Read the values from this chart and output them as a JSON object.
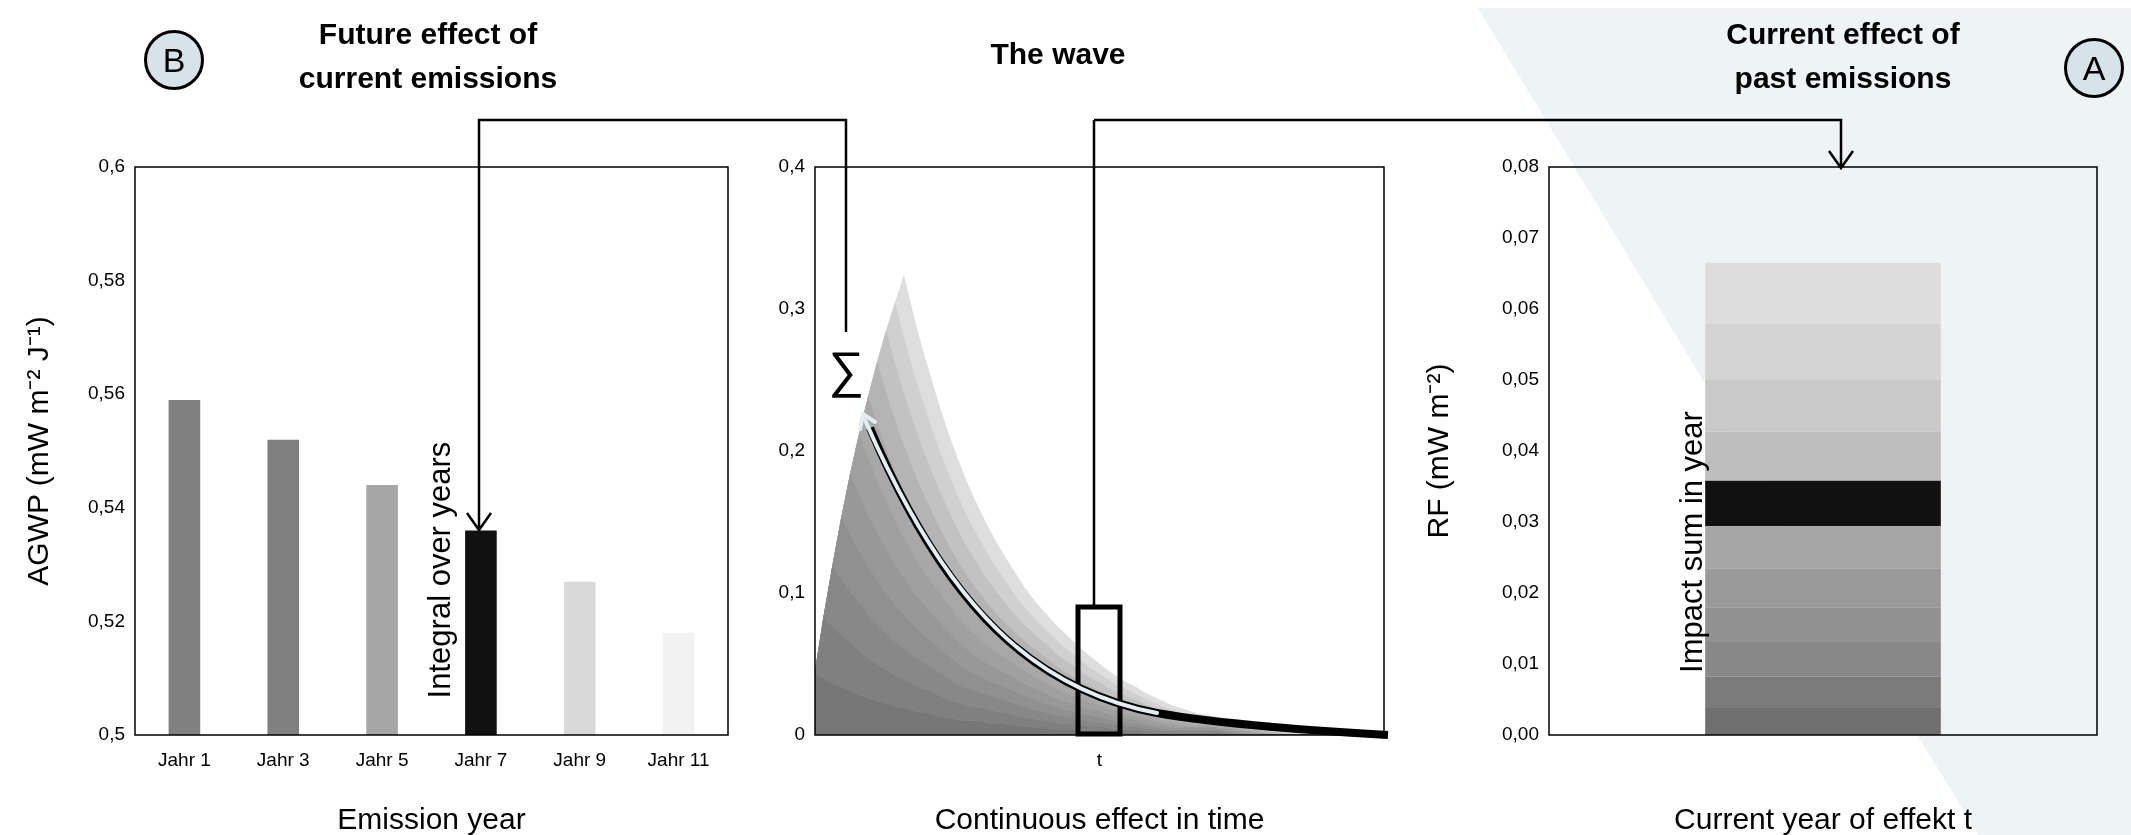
{
  "chart_data": [
    {
      "type": "bar",
      "title": "Future effect of current emissions",
      "xlabel": "Emission year",
      "ylabel": "AGWP (mW m⁻² J⁻¹)",
      "categories": [
        "Jahr 1",
        "Jahr 3",
        "Jahr 5",
        "Jahr 7",
        "Jahr 9",
        "Jahr 11"
      ],
      "values": [
        0.559,
        0.552,
        0.544,
        0.536,
        0.527,
        0.518
      ],
      "colors": [
        "#808080",
        "#808080",
        "#a6a6a6",
        "#111111",
        "#d9d9d9",
        "#f2f2f2"
      ],
      "ylim": [
        0.5,
        0.6
      ],
      "yticks": [
        {
          "value": 0.5,
          "label": "0,5"
        },
        {
          "value": 0.52,
          "label": "0,52"
        },
        {
          "value": 0.54,
          "label": "0,54"
        },
        {
          "value": 0.56,
          "label": "0,56"
        },
        {
          "value": 0.58,
          "label": "0,58"
        },
        {
          "value": 0.6,
          "label": "0,6"
        }
      ],
      "annotations": [
        "B",
        "Integral over years"
      ]
    },
    {
      "type": "area",
      "stacked": true,
      "title": "The wave",
      "xlabel": "Continuous effect in time",
      "categories": [
        null,
        null,
        null,
        null,
        null,
        null,
        null,
        null,
        null,
        null,
        null,
        null,
        null,
        null,
        null,
        null,
        null,
        null,
        null,
        null,
        null,
        null,
        null,
        null,
        null,
        null,
        null,
        null,
        null,
        null,
        null,
        null,
        "t",
        null,
        null,
        null,
        null,
        null,
        null,
        null,
        null,
        null,
        null,
        null,
        null,
        null,
        null,
        null,
        null,
        null,
        null,
        null,
        null,
        null,
        null,
        null,
        null,
        null,
        null,
        null,
        null,
        null,
        null,
        null,
        null
      ],
      "ylim": [
        0,
        0.4
      ],
      "yticks": [
        0,
        {
          "value": 0.1,
          "label": "0,1"
        },
        {
          "value": 0.2,
          "label": "0,2"
        },
        {
          "value": 0.3,
          "label": "0,3"
        },
        {
          "value": 0.4,
          "label": "0,4"
        }
      ],
      "marker": "none",
      "series": [
        {
          "color": "#777777",
          "values": [
            0.043,
            0.04,
            0.036,
            0.034,
            0.031,
            0.028,
            0.026,
            0.024,
            0.022,
            0.02,
            0.019,
            0.017,
            0.016,
            0.015,
            0.013,
            0.012,
            0.011,
            0.01,
            0.01,
            0.009,
            0.008,
            0.008,
            0.007,
            0.006,
            0.006,
            0.005,
            0.005,
            0.004,
            0.004,
            0.004,
            0.003,
            0.003,
            0.003,
            0.002,
            0.002,
            0.002,
            0.002,
            0.001,
            0.001,
            0.001,
            0.001,
            0.001,
            0.001,
            0.001,
            0.001,
            0.001,
            0,
            0,
            0,
            0,
            0,
            0,
            0,
            0,
            0,
            0,
            0,
            0,
            0,
            0,
            0,
            0,
            0,
            0,
            0
          ]
        },
        {
          "color": "#808080",
          "values": [
            0,
            0.043,
            0.04,
            0.036,
            0.034,
            0.031,
            0.028,
            0.026,
            0.024,
            0.022,
            0.02,
            0.019,
            0.017,
            0.016,
            0.015,
            0.013,
            0.012,
            0.011,
            0.01,
            0.01,
            0.009,
            0.008,
            0.008,
            0.007,
            0.006,
            0.006,
            0.005,
            0.005,
            0.004,
            0.004,
            0.004,
            0.003,
            0.003,
            0.003,
            0.002,
            0.002,
            0.002,
            0.002,
            0.001,
            0.001,
            0.001,
            0.001,
            0.001,
            0.001,
            0.001,
            0.001,
            0.001,
            0,
            0,
            0,
            0,
            0,
            0,
            0,
            0,
            0,
            0,
            0,
            0,
            0,
            0,
            0,
            0,
            0,
            0
          ]
        },
        {
          "color": "#888888",
          "values": [
            0,
            0,
            0.043,
            0.04,
            0.036,
            0.034,
            0.031,
            0.028,
            0.026,
            0.024,
            0.022,
            0.02,
            0.019,
            0.017,
            0.016,
            0.015,
            0.013,
            0.012,
            0.011,
            0.01,
            0.01,
            0.009,
            0.008,
            0.008,
            0.007,
            0.006,
            0.006,
            0.005,
            0.005,
            0.004,
            0.004,
            0.004,
            0.003,
            0.003,
            0.003,
            0.002,
            0.002,
            0.002,
            0.002,
            0.001,
            0.001,
            0.001,
            0.001,
            0.001,
            0.001,
            0.001,
            0.001,
            0.001,
            0,
            0,
            0,
            0,
            0,
            0,
            0,
            0,
            0,
            0,
            0,
            0,
            0,
            0,
            0,
            0,
            0
          ]
        },
        {
          "color": "#909090",
          "values": [
            0,
            0,
            0,
            0.043,
            0.04,
            0.036,
            0.034,
            0.031,
            0.028,
            0.026,
            0.024,
            0.022,
            0.02,
            0.019,
            0.017,
            0.016,
            0.015,
            0.013,
            0.012,
            0.011,
            0.01,
            0.01,
            0.009,
            0.008,
            0.008,
            0.007,
            0.006,
            0.006,
            0.005,
            0.005,
            0.004,
            0.004,
            0.004,
            0.003,
            0.003,
            0.003,
            0.002,
            0.002,
            0.002,
            0.002,
            0.001,
            0.001,
            0.001,
            0.001,
            0.001,
            0.001,
            0.001,
            0.001,
            0.001,
            0,
            0,
            0,
            0,
            0,
            0,
            0,
            0,
            0,
            0,
            0,
            0,
            0,
            0,
            0,
            0
          ]
        },
        {
          "color": "#989898",
          "values": [
            0,
            0,
            0,
            0,
            0.043,
            0.04,
            0.036,
            0.034,
            0.031,
            0.028,
            0.026,
            0.024,
            0.022,
            0.02,
            0.019,
            0.017,
            0.016,
            0.015,
            0.013,
            0.012,
            0.011,
            0.01,
            0.01,
            0.009,
            0.008,
            0.008,
            0.007,
            0.006,
            0.006,
            0.005,
            0.005,
            0.004,
            0.004,
            0.004,
            0.003,
            0.003,
            0.003,
            0.002,
            0.002,
            0.002,
            0.002,
            0.001,
            0.001,
            0.001,
            0.001,
            0.001,
            0.001,
            0.001,
            0.001,
            0.001,
            0,
            0,
            0,
            0,
            0,
            0,
            0,
            0,
            0,
            0,
            0,
            0,
            0,
            0,
            0
          ]
        },
        {
          "color": "#a0a0a0",
          "values": [
            0,
            0,
            0,
            0,
            0,
            0.043,
            0.04,
            0.036,
            0.034,
            0.031,
            0.028,
            0.026,
            0.024,
            0.022,
            0.02,
            0.019,
            0.017,
            0.016,
            0.015,
            0.013,
            0.012,
            0.011,
            0.01,
            0.01,
            0.009,
            0.008,
            0.008,
            0.007,
            0.006,
            0.006,
            0.005,
            0.005,
            0.004,
            0.004,
            0.004,
            0.003,
            0.003,
            0.003,
            0.002,
            0.002,
            0.002,
            0.002,
            0.001,
            0.001,
            0.001,
            0.001,
            0.001,
            0.001,
            0.001,
            0.001,
            0.001,
            0,
            0,
            0,
            0,
            0,
            0,
            0,
            0,
            0,
            0,
            0,
            0,
            0,
            0
          ]
        },
        {
          "color": "#a8a8a8",
          "values": [
            0,
            0,
            0,
            0,
            0,
            0,
            0.043,
            0.04,
            0.036,
            0.034,
            0.031,
            0.028,
            0.026,
            0.024,
            0.022,
            0.02,
            0.019,
            0.017,
            0.016,
            0.015,
            0.013,
            0.012,
            0.011,
            0.01,
            0.01,
            0.009,
            0.008,
            0.008,
            0.007,
            0.006,
            0.006,
            0.005,
            0.005,
            0.004,
            0.004,
            0.004,
            0.003,
            0.003,
            0.003,
            0.002,
            0.002,
            0.002,
            0.002,
            0.001,
            0.001,
            0.001,
            0.001,
            0.001,
            0.001,
            0.001,
            0.001,
            0.001,
            0,
            0,
            0,
            0,
            0,
            0,
            0,
            0,
            0,
            0,
            0,
            0,
            0
          ]
        },
        {
          "color": "#b4b4b4",
          "values": [
            0,
            0,
            0,
            0,
            0,
            0,
            0,
            0.043,
            0.04,
            0.036,
            0.034,
            0.031,
            0.028,
            0.026,
            0.024,
            0.022,
            0.02,
            0.019,
            0.017,
            0.016,
            0.015,
            0.013,
            0.012,
            0.011,
            0.01,
            0.01,
            0.009,
            0.008,
            0.008,
            0.007,
            0.006,
            0.006,
            0.005,
            0.005,
            0.004,
            0.004,
            0.004,
            0.003,
            0.003,
            0.003,
            0.002,
            0.002,
            0.002,
            0.002,
            0.001,
            0.001,
            0.001,
            0.001,
            0.001,
            0.001,
            0.001,
            0.001,
            0.001,
            0,
            0,
            0,
            0,
            0,
            0,
            0,
            0,
            0,
            0,
            0,
            0
          ]
        },
        {
          "color": "#c2c2c2",
          "values": [
            0,
            0,
            0,
            0,
            0,
            0,
            0,
            0,
            0.043,
            0.04,
            0.036,
            0.034,
            0.031,
            0.028,
            0.026,
            0.024,
            0.022,
            0.02,
            0.019,
            0.017,
            0.016,
            0.015,
            0.013,
            0.012,
            0.011,
            0.01,
            0.01,
            0.009,
            0.008,
            0.008,
            0.007,
            0.006,
            0.006,
            0.005,
            0.005,
            0.004,
            0.004,
            0.004,
            0.003,
            0.003,
            0.003,
            0.002,
            0.002,
            0.002,
            0.002,
            0.001,
            0.001,
            0.001,
            0.001,
            0.001,
            0.001,
            0.001,
            0.001,
            0.001,
            0,
            0,
            0,
            0,
            0,
            0,
            0,
            0,
            0,
            0,
            0
          ]
        },
        {
          "color": "#d0d0d0",
          "values": [
            0,
            0,
            0,
            0,
            0,
            0,
            0,
            0,
            0,
            0.043,
            0.04,
            0.036,
            0.034,
            0.031,
            0.028,
            0.026,
            0.024,
            0.022,
            0.02,
            0.019,
            0.017,
            0.016,
            0.015,
            0.013,
            0.012,
            0.011,
            0.01,
            0.01,
            0.009,
            0.008,
            0.008,
            0.007,
            0.006,
            0.006,
            0.005,
            0.005,
            0.004,
            0.004,
            0.004,
            0.003,
            0.003,
            0.003,
            0.002,
            0.002,
            0.002,
            0.002,
            0.001,
            0.001,
            0.001,
            0.001,
            0.001,
            0.001,
            0.001,
            0.001,
            0.001,
            0,
            0,
            0,
            0,
            0,
            0,
            0,
            0,
            0,
            0
          ]
        },
        {
          "color": "#dedede",
          "values": [
            0,
            0,
            0,
            0,
            0,
            0,
            0,
            0,
            0,
            0,
            0.043,
            0.04,
            0.036,
            0.034,
            0.031,
            0.028,
            0.026,
            0.024,
            0.022,
            0.02,
            0.019,
            0.017,
            0.016,
            0.015,
            0.013,
            0.012,
            0.011,
            0.01,
            0.01,
            0.009,
            0.008,
            0.008,
            0.007,
            0.006,
            0.006,
            0.005,
            0.005,
            0.004,
            0.004,
            0.004,
            0.003,
            0.003,
            0.003,
            0.002,
            0.002,
            0.002,
            0.002,
            0.001,
            0.001,
            0.001,
            0.001,
            0.001,
            0.001,
            0.001,
            0.001,
            0.001,
            0,
            0,
            0,
            0,
            0,
            0,
            0,
            0,
            0
          ]
        }
      ],
      "annotations": [
        "∑"
      ]
    },
    {
      "type": "bar",
      "stacked": true,
      "title": "Current effect of past emissions",
      "xlabel": "Current year of effekt t",
      "ylabel": "RF (mW m⁻²)",
      "categories": [
        null
      ],
      "tick_labels": "y",
      "ylim": [
        0,
        0.08
      ],
      "yticks": [
        {
          "value": 0,
          "label": "0,00"
        },
        {
          "value": 0.01,
          "label": "0,01"
        },
        {
          "value": 0.02,
          "label": "0,02"
        },
        {
          "value": 0.03,
          "label": "0,03"
        },
        {
          "value": 0.04,
          "label": "0,04"
        },
        {
          "value": 0.05,
          "label": "0,05"
        },
        {
          "value": 0.06,
          "label": "0,06"
        },
        {
          "value": 0.07,
          "label": "0,07"
        },
        {
          "value": 0.08,
          "label": "0,08"
        }
      ],
      "series": [
        {
          "color": "#6f6f6f",
          "values": [
            0.0038
          ]
        },
        {
          "color": "#7b7b7b",
          "values": [
            0.0044
          ]
        },
        {
          "color": "#888888",
          "values": [
            0.0049
          ]
        },
        {
          "color": "#919191",
          "values": [
            0.0049
          ]
        },
        {
          "color": "#9a9a9a",
          "values": [
            0.0055
          ]
        },
        {
          "color": "#a6a6a6",
          "values": [
            0.0059
          ]
        },
        {
          "color": "#111111",
          "values": [
            0.0064
          ]
        },
        {
          "color": "#bebebe",
          "values": [
            0.0069
          ]
        },
        {
          "color": "#c9c9c9",
          "values": [
            0.0073
          ]
        },
        {
          "color": "#d4d4d4",
          "values": [
            0.0079
          ]
        },
        {
          "color": "#dddddd",
          "values": [
            0.0086
          ]
        }
      ],
      "annotations": [
        "A",
        "Impact sum in year"
      ]
    }
  ]
}
